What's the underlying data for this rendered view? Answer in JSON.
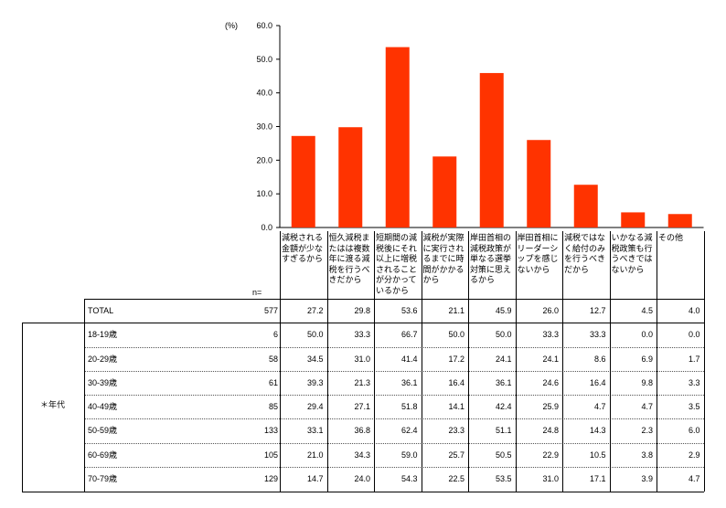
{
  "chart_data": {
    "type": "bar",
    "ylabel": "(%)",
    "ylim": [
      0,
      60
    ],
    "y_ticks": [
      "60.0",
      "50.0",
      "40.0",
      "30.0",
      "20.0",
      "10.0",
      "0.0"
    ],
    "bar_color": "#ff3300",
    "categories": [
      "減税される金額が少なすぎるから",
      "恒久減税またはは複数年に渡る減税を行うべきだから",
      "短期間の減税後にそれ以上に増税されることが分かっているから",
      "減税が実際に実行されるまでに時間がかかるから",
      "岸田首相の減税政策が単なる選挙対策に思えるから",
      "岸田首相にリーダーシップを感じないから",
      "減税ではなく給付のみを行うべきだから",
      "いかなる減税政策も行うべきではないから",
      "その他"
    ],
    "values": [
      27.2,
      29.8,
      53.6,
      21.1,
      45.9,
      26.0,
      12.7,
      4.5,
      4.0
    ]
  },
  "table": {
    "n_label": "n=",
    "group_label": "＊年代",
    "total": {
      "label": "TOTAL",
      "n": "577",
      "values": [
        "27.2",
        "29.8",
        "53.6",
        "21.1",
        "45.9",
        "26.0",
        "12.7",
        "4.5",
        "4.0"
      ]
    },
    "rows": [
      {
        "label": "18-19歳",
        "n": "6",
        "values": [
          "50.0",
          "33.3",
          "66.7",
          "50.0",
          "50.0",
          "33.3",
          "33.3",
          "0.0",
          "0.0"
        ]
      },
      {
        "label": "20-29歳",
        "n": "58",
        "values": [
          "34.5",
          "31.0",
          "41.4",
          "17.2",
          "24.1",
          "24.1",
          "8.6",
          "6.9",
          "1.7"
        ]
      },
      {
        "label": "30-39歳",
        "n": "61",
        "values": [
          "39.3",
          "21.3",
          "36.1",
          "16.4",
          "36.1",
          "24.6",
          "16.4",
          "9.8",
          "3.3"
        ]
      },
      {
        "label": "40-49歳",
        "n": "85",
        "values": [
          "29.4",
          "27.1",
          "51.8",
          "14.1",
          "42.4",
          "25.9",
          "4.7",
          "4.7",
          "3.5"
        ]
      },
      {
        "label": "50-59歳",
        "n": "133",
        "values": [
          "33.1",
          "36.8",
          "62.4",
          "23.3",
          "51.1",
          "24.8",
          "14.3",
          "2.3",
          "6.0"
        ]
      },
      {
        "label": "60-69歳",
        "n": "105",
        "values": [
          "21.0",
          "34.3",
          "59.0",
          "25.7",
          "50.5",
          "22.9",
          "10.5",
          "3.8",
          "2.9"
        ]
      },
      {
        "label": "70-79歳",
        "n": "129",
        "values": [
          "14.7",
          "24.0",
          "54.3",
          "22.5",
          "53.5",
          "31.0",
          "17.1",
          "3.9",
          "4.7"
        ]
      }
    ]
  }
}
